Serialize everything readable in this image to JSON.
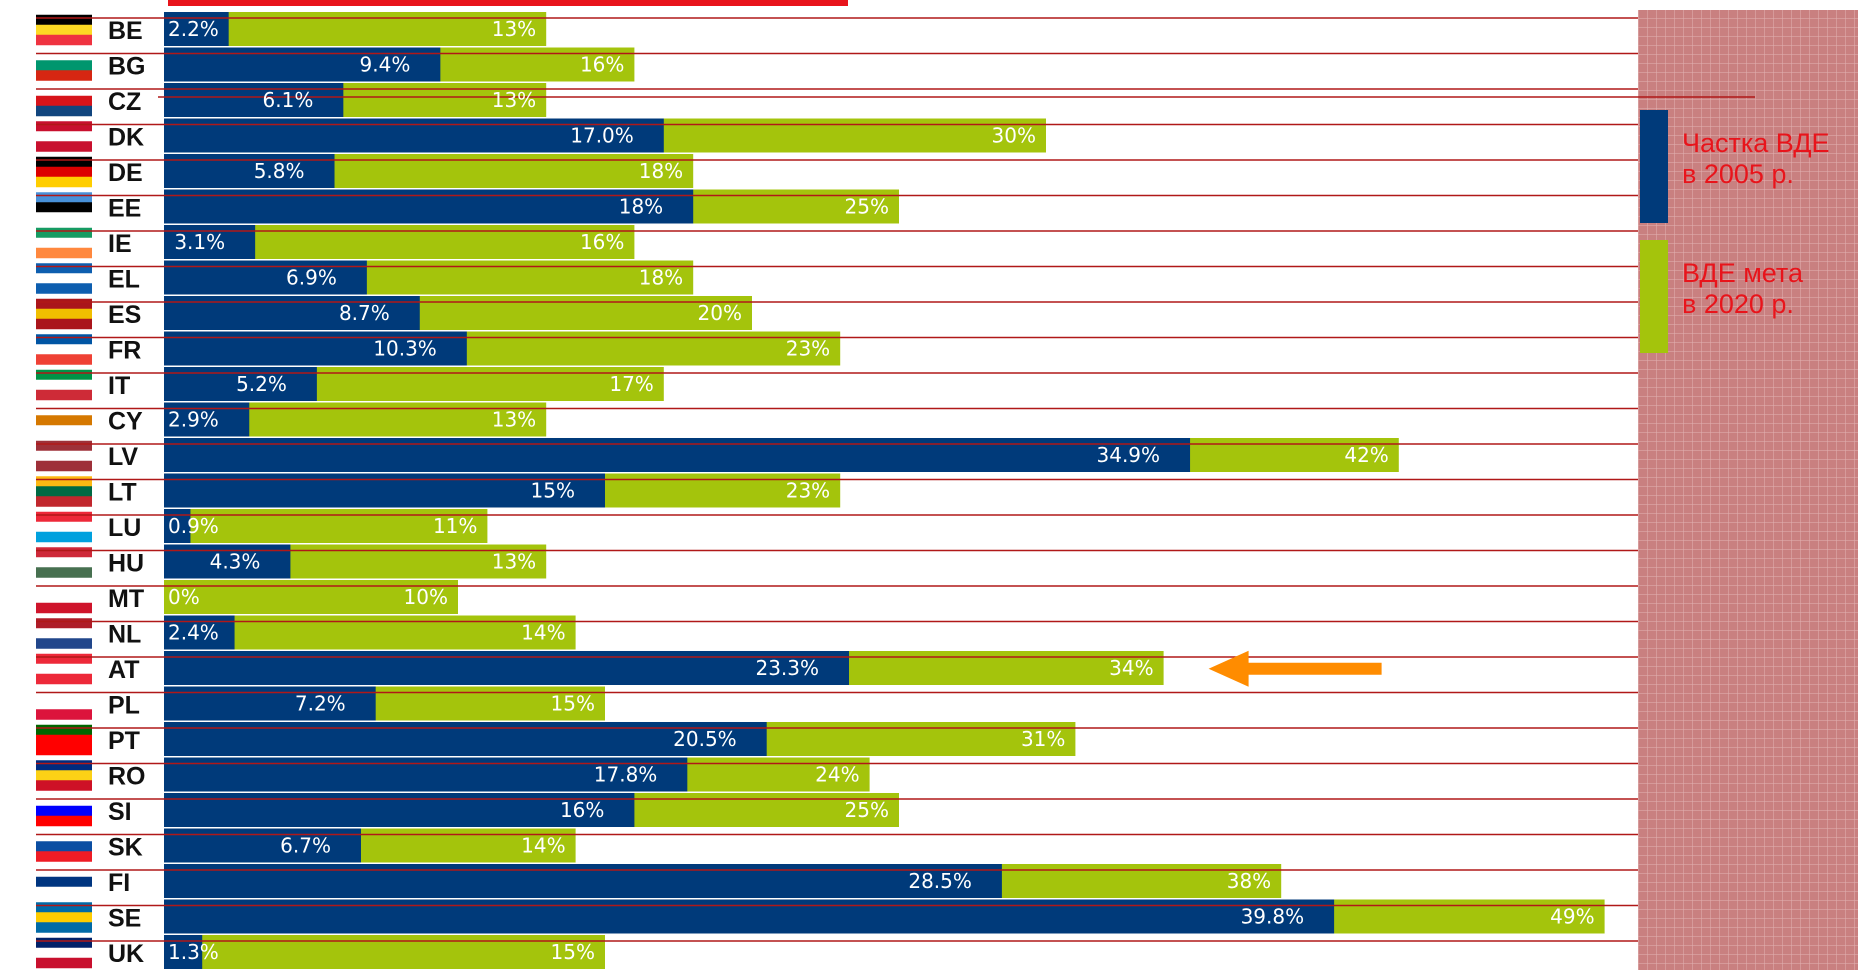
{
  "chart_data": {
    "type": "bar",
    "title": "",
    "categories": [
      "BE",
      "BG",
      "CZ",
      "DK",
      "DE",
      "EE",
      "IE",
      "EL",
      "ES",
      "FR",
      "IT",
      "CY",
      "LV",
      "LT",
      "LU",
      "HU",
      "MT",
      "NL",
      "AT",
      "PL",
      "PT",
      "RO",
      "SI",
      "SK",
      "FI",
      "SE",
      "UK"
    ],
    "series": [
      {
        "name": "Частка ВДЕ в 2005 р.",
        "color": "#003a7a",
        "values": [
          2.2,
          9.4,
          6.1,
          17.0,
          5.8,
          18,
          3.1,
          6.9,
          8.7,
          10.3,
          5.2,
          2.9,
          34.9,
          15,
          0.9,
          4.3,
          0,
          2.4,
          23.3,
          7.2,
          20.5,
          17.8,
          16,
          6.7,
          28.5,
          39.8,
          1.3
        ],
        "labels": [
          "2.2%",
          "9.4%",
          "6.1%",
          "17.0%",
          "5.8%",
          "18%",
          "3.1%",
          "6.9%",
          "8.7%",
          "10.3%",
          "5.2%",
          "2.9%",
          "34.9%",
          "15%",
          "0.9%",
          "4.3%",
          "0%",
          "2.4%",
          "23.3%",
          "7.2%",
          "20.5%",
          "17.8%",
          "16%",
          "6.7%",
          "28.5%",
          "39.8%",
          "1.3%"
        ]
      },
      {
        "name": "ВДЕ мета в 2020 р.",
        "color": "#a4c40c",
        "values": [
          13,
          16,
          13,
          30,
          18,
          25,
          16,
          18,
          20,
          23,
          17,
          13,
          42,
          23,
          11,
          13,
          10,
          14,
          34,
          15,
          31,
          24,
          25,
          14,
          38,
          49,
          15
        ],
        "labels": [
          "13%",
          "16%",
          "13%",
          "30%",
          "18%",
          "25%",
          "16%",
          "18%",
          "20%",
          "23%",
          "17%",
          "13%",
          "42%",
          "23%",
          "11%",
          "13%",
          "10%",
          "14%",
          "34%",
          "15%",
          "31%",
          "24%",
          "25%",
          "14%",
          "38%",
          "49%",
          "15%"
        ]
      }
    ],
    "xlim": [
      0,
      50
    ],
    "highlight": "AT",
    "legend": {
      "position": "right",
      "items": [
        {
          "line1": "Частка ВДЕ",
          "line2": "в 2005 р.",
          "color": "#003a7a"
        },
        {
          "line1": "ВДЕ мета",
          "line2": "в 2020 р.",
          "color": "#a4c40c"
        }
      ]
    },
    "colors": {
      "gridline": "#b01818",
      "arrow": "#ff8c00",
      "legend_panel": "#c98080",
      "legend_text": "#e8141b"
    }
  }
}
